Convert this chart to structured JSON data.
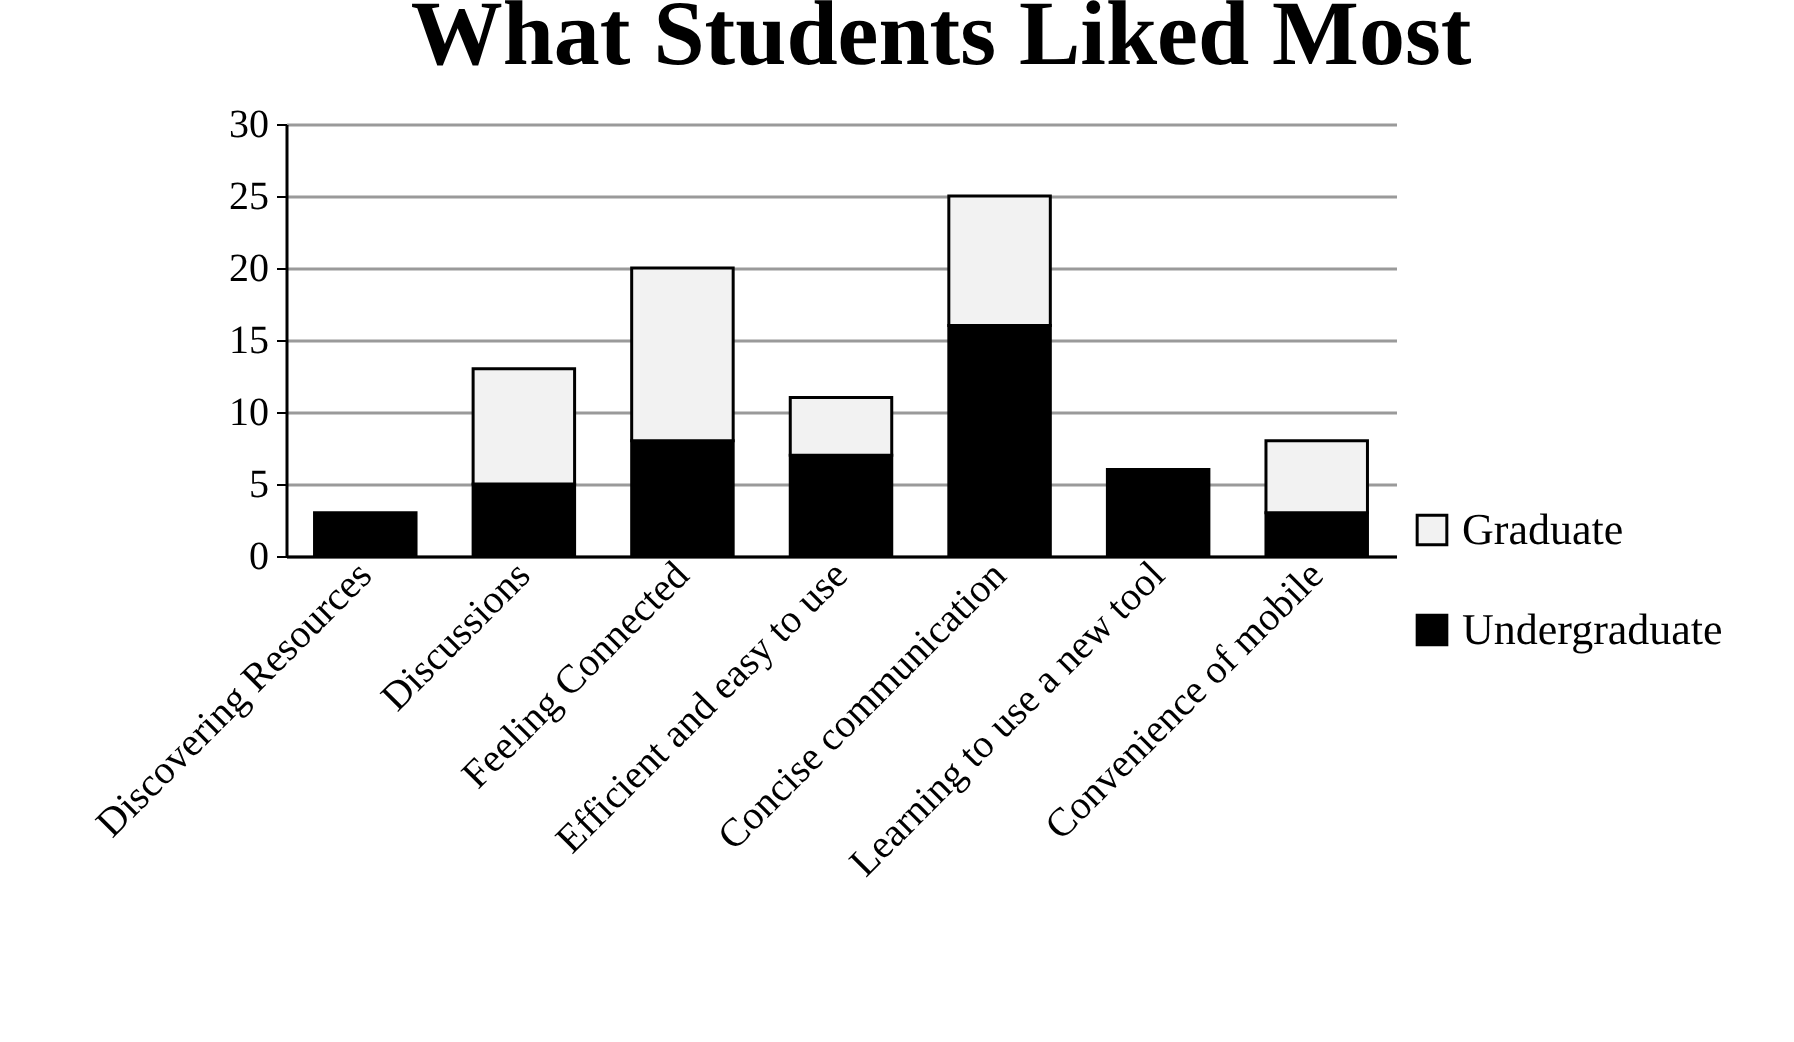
{
  "chart_data": {
    "type": "bar",
    "title": "What Students Liked Most",
    "stacked": true,
    "categories": [
      "Discovering Resources",
      "Discussions",
      "Feeling Connected",
      "Efficient and easy to use",
      "Concise communication",
      "Learning to use a new tool",
      "Convenience of mobile"
    ],
    "series": [
      {
        "name": "Undergraduate",
        "color": "#000000",
        "values": [
          3,
          5,
          8,
          7,
          16,
          6,
          3
        ]
      },
      {
        "name": "Graduate",
        "color": "#f2f2f2",
        "values": [
          null,
          8,
          12,
          4,
          9,
          null,
          5
        ]
      }
    ],
    "ylim": [
      0,
      30
    ],
    "yticks": [
      0,
      5,
      10,
      15,
      20,
      25,
      30
    ],
    "grid": "y",
    "legend": "right"
  }
}
